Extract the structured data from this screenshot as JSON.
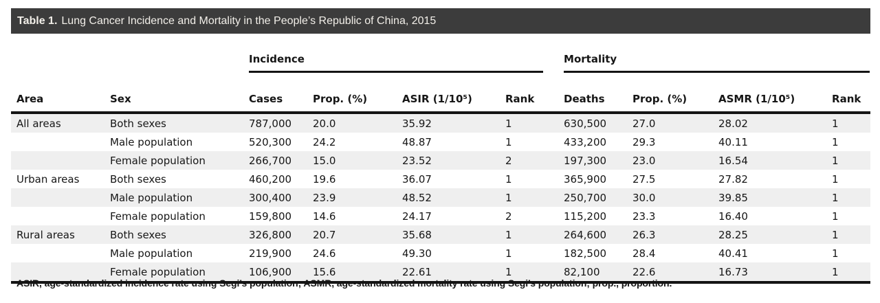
{
  "title": {
    "label": "Table 1.",
    "text": "Lung Cancer Incidence and Mortality in the People’s Republic of China, 2015"
  },
  "table": {
    "group_headers": {
      "incidence": "Incidence",
      "mortality": "Mortality"
    },
    "columns": {
      "area": "Area",
      "sex": "Sex",
      "cases": "Cases",
      "prop_incidence": "Prop. (%)",
      "asir": "ASIR (1/10⁵)",
      "rank_incidence": "Rank",
      "deaths": "Deaths",
      "prop_mortality": "Prop. (%)",
      "asmr": "ASMR (1/10⁵)",
      "rank_mortality": "Rank"
    },
    "rows": [
      [
        "All areas",
        "Both sexes",
        "787,000",
        "20.0",
        "35.92",
        "1",
        "630,500",
        "27.0",
        "28.02",
        "1"
      ],
      [
        "",
        "Male population",
        "520,300",
        "24.2",
        "48.87",
        "1",
        "433,200",
        "29.3",
        "40.11",
        "1"
      ],
      [
        "",
        "Female population",
        "266,700",
        "15.0",
        "23.52",
        "2",
        "197,300",
        "23.0",
        "16.54",
        "1"
      ],
      [
        "Urban areas",
        "Both sexes",
        "460,200",
        "19.6",
        "36.07",
        "1",
        "365,900",
        "27.5",
        "27.82",
        "1"
      ],
      [
        "",
        "Male population",
        "300,400",
        "23.9",
        "48.52",
        "1",
        "250,700",
        "30.0",
        "39.85",
        "1"
      ],
      [
        "",
        "Female population",
        "159,800",
        "14.6",
        "24.17",
        "2",
        "115,200",
        "23.3",
        "16.40",
        "1"
      ],
      [
        "Rural areas",
        "Both sexes",
        "326,800",
        "20.7",
        "35.68",
        "1",
        "264,600",
        "26.3",
        "28.25",
        "1"
      ],
      [
        "",
        "Male population",
        "219,900",
        "24.6",
        "49.30",
        "1",
        "182,500",
        "28.4",
        "40.41",
        "1"
      ],
      [
        "",
        "Female population",
        "106,900",
        "15.6",
        "22.61",
        "1",
        "82,100",
        "22.6",
        "16.73",
        "1"
      ]
    ]
  },
  "footnote": "ASIR, age-standardized incidence rate using Segi’s population; ASMR, age-standardized mortality rate using Segi’s population; prop., proportion.",
  "colors": {
    "header_bar_bg": "#3c3c3c",
    "header_bar_text": "#f2efe9",
    "row_stripe": "#efefef",
    "rule": "#141414",
    "text": "#161616",
    "background": "#ffffff"
  }
}
